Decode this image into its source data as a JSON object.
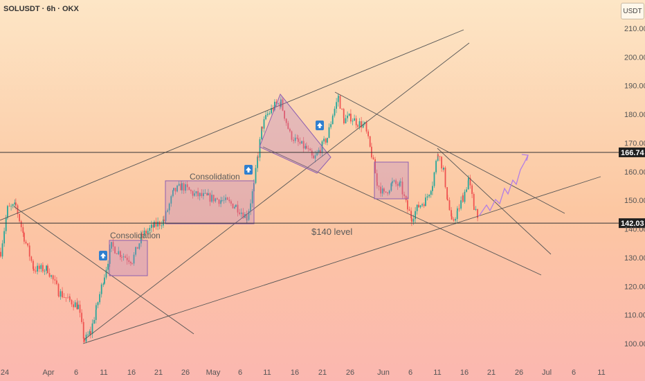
{
  "symbol_title": "SOLUSDT · 6h · OKX",
  "currency_label": "USDT",
  "chart_data": {
    "type": "candlestick",
    "title": "SOLUSDT · 6h · OKX",
    "ylim": [
      93,
      215
    ],
    "y_ticks": [
      100,
      110,
      120,
      130,
      140,
      150,
      160,
      170,
      180,
      190,
      200,
      210
    ],
    "y_tick_labels": [
      "100.00",
      "110.00",
      "120.00",
      "130.00",
      "140.00",
      "150.00",
      "160.00",
      "170.00",
      "180.00",
      "190.00",
      "200.00",
      "210.00"
    ],
    "x_tick_labels": [
      "24",
      "Apr",
      "6",
      "11",
      "16",
      "21",
      "26",
      "May",
      "6",
      "11",
      "16",
      "21",
      "26",
      "Jun",
      "6",
      "11",
      "16",
      "21",
      "26",
      "Jul",
      "6",
      "11"
    ],
    "levels": [
      {
        "name": "resistance",
        "value": 166.74,
        "label": "166.74"
      },
      {
        "name": "support",
        "value": 142.03,
        "label": "142.03"
      }
    ],
    "annotations": {
      "consolidation_1": "Consolidation",
      "consolidation_2": "Consolidation",
      "support_level": "$140 level"
    },
    "colors": {
      "up": "#26a69a",
      "down": "#ef5350",
      "box": "#9c6fc0",
      "projection": "#b27ee6",
      "line": "#555555"
    }
  }
}
